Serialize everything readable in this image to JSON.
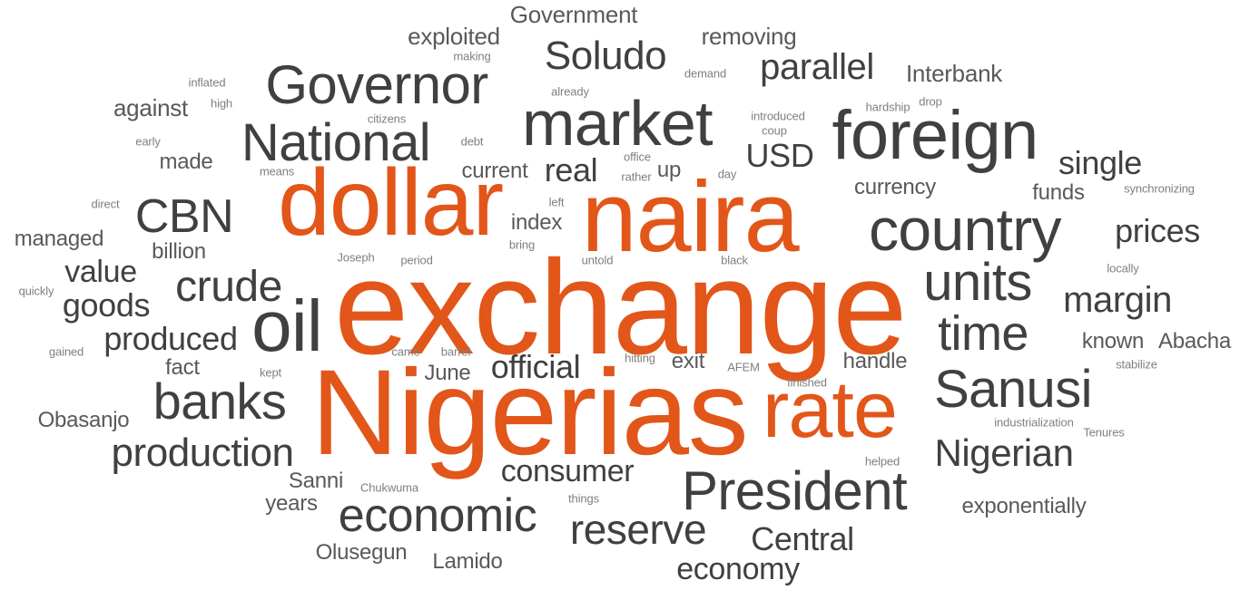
{
  "colors": {
    "accent": "#e2561a",
    "primary": "#404040",
    "secondary": "#595959",
    "minor": "#7f7f7f",
    "background": "#ffffff"
  },
  "words": [
    {
      "text": "exchange",
      "tone": "accent"
    },
    {
      "text": "Nigerias",
      "tone": "accent"
    },
    {
      "text": "naira",
      "tone": "accent"
    },
    {
      "text": "dollar",
      "tone": "accent"
    },
    {
      "text": "rate",
      "tone": "accent"
    },
    {
      "text": "oil",
      "tone": "primary"
    },
    {
      "text": "foreign",
      "tone": "primary"
    },
    {
      "text": "market",
      "tone": "primary"
    },
    {
      "text": "country",
      "tone": "primary"
    },
    {
      "text": "Governor",
      "tone": "primary"
    },
    {
      "text": "President",
      "tone": "primary"
    },
    {
      "text": "National",
      "tone": "primary"
    },
    {
      "text": "Sanusi",
      "tone": "primary"
    },
    {
      "text": "units",
      "tone": "primary"
    },
    {
      "text": "banks",
      "tone": "primary"
    },
    {
      "text": "economic",
      "tone": "primary"
    },
    {
      "text": "time",
      "tone": "primary"
    },
    {
      "text": "CBN",
      "tone": "primary"
    },
    {
      "text": "crude",
      "tone": "primary"
    },
    {
      "text": "production",
      "tone": "primary"
    },
    {
      "text": "reserve",
      "tone": "primary"
    },
    {
      "text": "Nigerian",
      "tone": "primary"
    },
    {
      "text": "Soludo",
      "tone": "primary"
    },
    {
      "text": "parallel",
      "tone": "primary"
    },
    {
      "text": "margin",
      "tone": "primary"
    },
    {
      "text": "Central",
      "tone": "primary"
    },
    {
      "text": "economy",
      "tone": "primary"
    },
    {
      "text": "consumer",
      "tone": "primary"
    },
    {
      "text": "produced",
      "tone": "primary"
    },
    {
      "text": "goods",
      "tone": "primary"
    },
    {
      "text": "value",
      "tone": "primary"
    },
    {
      "text": "official",
      "tone": "primary"
    },
    {
      "text": "single",
      "tone": "primary"
    },
    {
      "text": "prices",
      "tone": "primary"
    },
    {
      "text": "USD",
      "tone": "primary"
    },
    {
      "text": "real",
      "tone": "primary"
    },
    {
      "text": "Interbank",
      "tone": "secondary"
    },
    {
      "text": "exploited",
      "tone": "secondary"
    },
    {
      "text": "removing",
      "tone": "secondary"
    },
    {
      "text": "Government",
      "tone": "secondary"
    },
    {
      "text": "against",
      "tone": "secondary"
    },
    {
      "text": "made",
      "tone": "secondary"
    },
    {
      "text": "current",
      "tone": "secondary"
    },
    {
      "text": "up",
      "tone": "secondary"
    },
    {
      "text": "currency",
      "tone": "secondary"
    },
    {
      "text": "funds",
      "tone": "secondary"
    },
    {
      "text": "managed",
      "tone": "secondary"
    },
    {
      "text": "billion",
      "tone": "secondary"
    },
    {
      "text": "index",
      "tone": "secondary"
    },
    {
      "text": "known",
      "tone": "secondary"
    },
    {
      "text": "Abacha",
      "tone": "secondary"
    },
    {
      "text": "fact",
      "tone": "secondary"
    },
    {
      "text": "June",
      "tone": "secondary"
    },
    {
      "text": "exit",
      "tone": "secondary"
    },
    {
      "text": "handle",
      "tone": "secondary"
    },
    {
      "text": "Obasanjo",
      "tone": "secondary"
    },
    {
      "text": "Sanni",
      "tone": "secondary"
    },
    {
      "text": "years",
      "tone": "secondary"
    },
    {
      "text": "Olusegun",
      "tone": "secondary"
    },
    {
      "text": "Lamido",
      "tone": "secondary"
    },
    {
      "text": "exponentially",
      "tone": "secondary"
    },
    {
      "text": "making",
      "tone": "minor"
    },
    {
      "text": "inflated",
      "tone": "minor"
    },
    {
      "text": "high",
      "tone": "minor"
    },
    {
      "text": "early",
      "tone": "minor"
    },
    {
      "text": "citizens",
      "tone": "minor"
    },
    {
      "text": "debt",
      "tone": "minor"
    },
    {
      "text": "means",
      "tone": "minor"
    },
    {
      "text": "already",
      "tone": "minor"
    },
    {
      "text": "demand",
      "tone": "minor"
    },
    {
      "text": "introduced",
      "tone": "minor"
    },
    {
      "text": "coup",
      "tone": "minor"
    },
    {
      "text": "hardship",
      "tone": "minor"
    },
    {
      "text": "drop",
      "tone": "minor"
    },
    {
      "text": "office",
      "tone": "minor"
    },
    {
      "text": "rather",
      "tone": "minor"
    },
    {
      "text": "day",
      "tone": "minor"
    },
    {
      "text": "synchronizing",
      "tone": "minor"
    },
    {
      "text": "direct",
      "tone": "minor"
    },
    {
      "text": "left",
      "tone": "minor"
    },
    {
      "text": "bring",
      "tone": "minor"
    },
    {
      "text": "Joseph",
      "tone": "minor"
    },
    {
      "text": "period",
      "tone": "minor"
    },
    {
      "text": "untold",
      "tone": "minor"
    },
    {
      "text": "black",
      "tone": "minor"
    },
    {
      "text": "locally",
      "tone": "minor"
    },
    {
      "text": "quickly",
      "tone": "minor"
    },
    {
      "text": "gained",
      "tone": "minor"
    },
    {
      "text": "came",
      "tone": "minor"
    },
    {
      "text": "barrel",
      "tone": "minor"
    },
    {
      "text": "hitting",
      "tone": "minor"
    },
    {
      "text": "kept",
      "tone": "minor"
    },
    {
      "text": "AFEM",
      "tone": "minor"
    },
    {
      "text": "finished",
      "tone": "minor"
    },
    {
      "text": "stabilize",
      "tone": "minor"
    },
    {
      "text": "industrialization",
      "tone": "minor"
    },
    {
      "text": "Tenures",
      "tone": "minor"
    },
    {
      "text": "helped",
      "tone": "minor"
    },
    {
      "text": "Chukwuma",
      "tone": "minor"
    },
    {
      "text": "things",
      "tone": "minor"
    }
  ]
}
